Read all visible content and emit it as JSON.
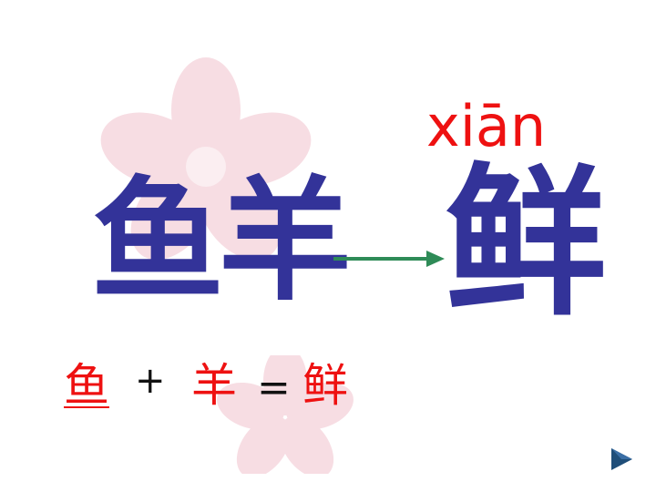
{
  "pinyin": "xiān",
  "components": "鱼羊",
  "result_char": "鲜",
  "equation": {
    "part1": "鱼",
    "plus": "+",
    "part2": "羊",
    "equals": "=",
    "result": "鲜"
  },
  "colors": {
    "character_blue": "#333399",
    "pinyin_red": "#ee1111",
    "arrow_green": "#2e8b57",
    "flower_pink": "#f7dde3",
    "nav_button": "#1f4e79"
  },
  "icons": {
    "background_flower": "cherry-blossom-icon",
    "arrow": "arrow-right-icon",
    "next": "play-triangle-icon"
  }
}
